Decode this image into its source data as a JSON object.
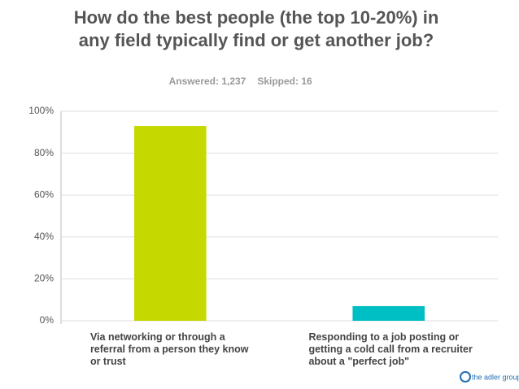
{
  "chart_data": {
    "type": "bar",
    "title": "How do the best people (the top 10-20%) in any field typically find or get another job?",
    "subtitle": [
      "Answered: 1,237",
      "Skipped: 16"
    ],
    "categories": [
      "Via networking or through a referral from a person they know or trust",
      "Responding to a job posting or getting a cold call from a recruiter about a \"perfect job\""
    ],
    "values": [
      93,
      7
    ],
    "colors": [
      "#c5d800",
      "#00bfc4"
    ],
    "ylim": [
      0,
      100
    ],
    "yticks": [
      {
        "value": 0,
        "label": "0%"
      },
      {
        "value": 20,
        "label": "20%"
      },
      {
        "value": 40,
        "label": "40%"
      },
      {
        "value": 60,
        "label": "60%"
      },
      {
        "value": 80,
        "label": "80%"
      },
      {
        "value": 100,
        "label": "100%"
      }
    ],
    "grid": true,
    "logo": "the adler group"
  }
}
